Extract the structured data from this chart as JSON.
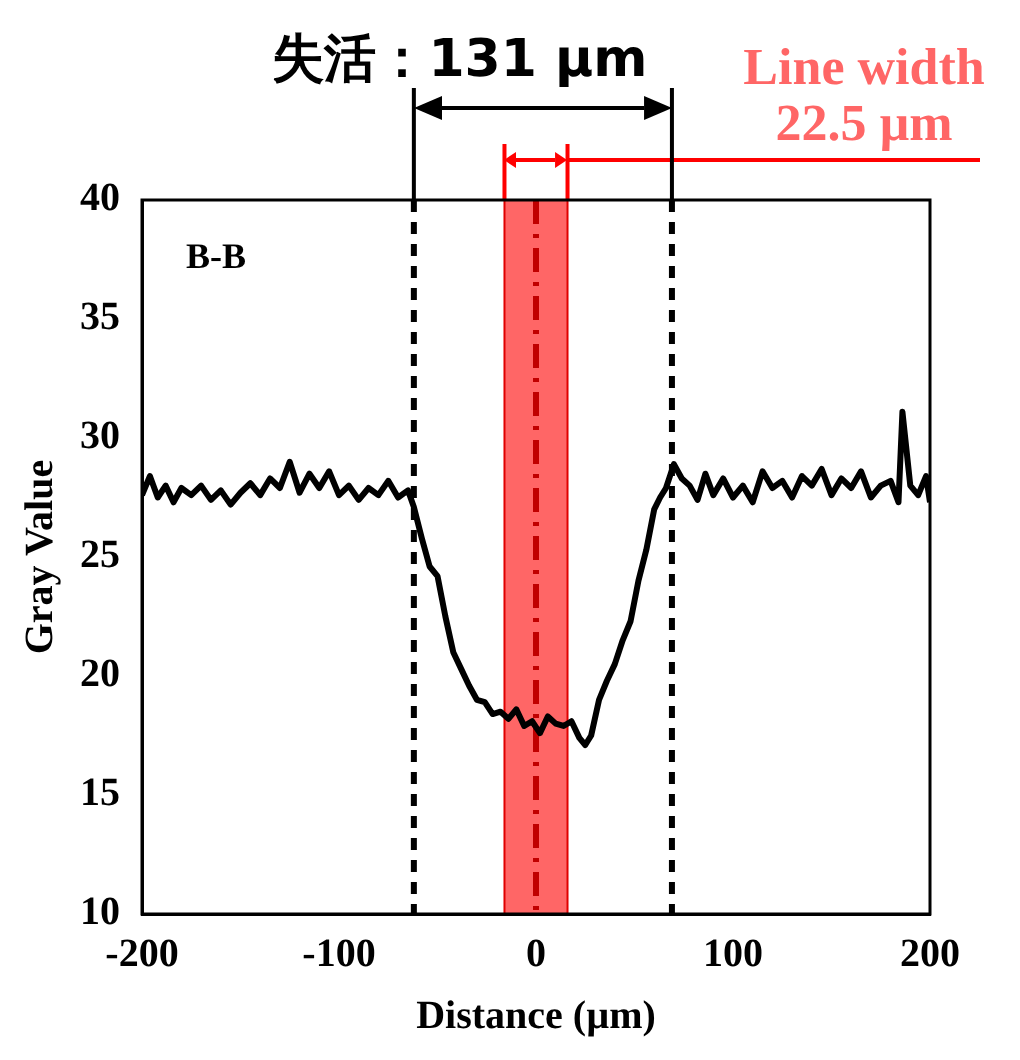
{
  "chart_data": {
    "type": "line",
    "title": "失活：131 µm",
    "xlabel": "Distance (µm)",
    "ylabel": "Gray Value",
    "x": [
      -200,
      -196,
      -192,
      -188,
      -184,
      -180,
      -175,
      -170,
      -165,
      -160,
      -155,
      -150,
      -145,
      -140,
      -135,
      -130,
      -125,
      -120,
      -115,
      -110,
      -105,
      -100,
      -95,
      -90,
      -85,
      -80,
      -75,
      -70,
      -65,
      -62,
      -58,
      -54,
      -50,
      -46,
      -42,
      -38,
      -34,
      -30,
      -26,
      -22,
      -18,
      -14,
      -10,
      -6,
      -2,
      2,
      6,
      10,
      14,
      18,
      22,
      25,
      28,
      32,
      36,
      40,
      44,
      48,
      52,
      56,
      60,
      63,
      66,
      70,
      74,
      78,
      82,
      86,
      90,
      95,
      100,
      105,
      110,
      115,
      120,
      125,
      130,
      135,
      140,
      145,
      150,
      155,
      160,
      165,
      170,
      175,
      180,
      184,
      186,
      190,
      194,
      198,
      200
    ],
    "values": [
      27.6,
      28.4,
      27.5,
      28.0,
      27.3,
      27.9,
      27.6,
      28.0,
      27.4,
      27.8,
      27.2,
      27.7,
      28.1,
      27.6,
      28.3,
      27.9,
      29.0,
      27.7,
      28.5,
      27.9,
      28.6,
      27.6,
      28.0,
      27.4,
      27.9,
      27.6,
      28.2,
      27.5,
      27.8,
      27.1,
      25.8,
      24.6,
      24.2,
      22.5,
      21.0,
      20.3,
      19.6,
      19.0,
      18.9,
      18.4,
      18.5,
      18.2,
      18.6,
      17.9,
      18.1,
      17.6,
      18.3,
      18.0,
      17.9,
      18.1,
      17.4,
      17.1,
      17.5,
      19.0,
      19.8,
      20.5,
      21.5,
      22.3,
      24.0,
      25.3,
      27.0,
      27.5,
      27.9,
      28.9,
      28.3,
      28.0,
      27.4,
      28.5,
      27.6,
      28.3,
      27.5,
      28.0,
      27.3,
      28.6,
      27.9,
      28.2,
      27.5,
      28.4,
      28.0,
      28.7,
      27.6,
      28.3,
      27.9,
      28.6,
      27.5,
      28.0,
      28.2,
      27.3,
      31.1,
      28.0,
      27.6,
      28.4,
      27.3
    ],
    "color": "#000000",
    "xlim": [
      -200,
      200
    ],
    "xticks": [
      -200,
      -100,
      0,
      100,
      200
    ],
    "ylim": [
      10,
      40
    ],
    "yticks": [
      10,
      15,
      20,
      25,
      30,
      35,
      40
    ],
    "grid": false,
    "legend": false,
    "marker": "none",
    "line_style": "solid",
    "ref_lines": [
      {
        "axis": "x",
        "value": -62,
        "color": "#000000",
        "line_style": "dashed"
      },
      {
        "axis": "x",
        "value": 69,
        "color": "#000000",
        "line_style": "dashed"
      },
      {
        "axis": "x",
        "value": 0,
        "color": "#c00000",
        "line_style": "dashdot"
      }
    ],
    "bands": [
      {
        "axis": "x",
        "from": -16,
        "to": 16,
        "color": "#ff6666",
        "label": "Line width\n22.5 µm"
      }
    ],
    "annotations": [
      "B-B"
    ]
  }
}
